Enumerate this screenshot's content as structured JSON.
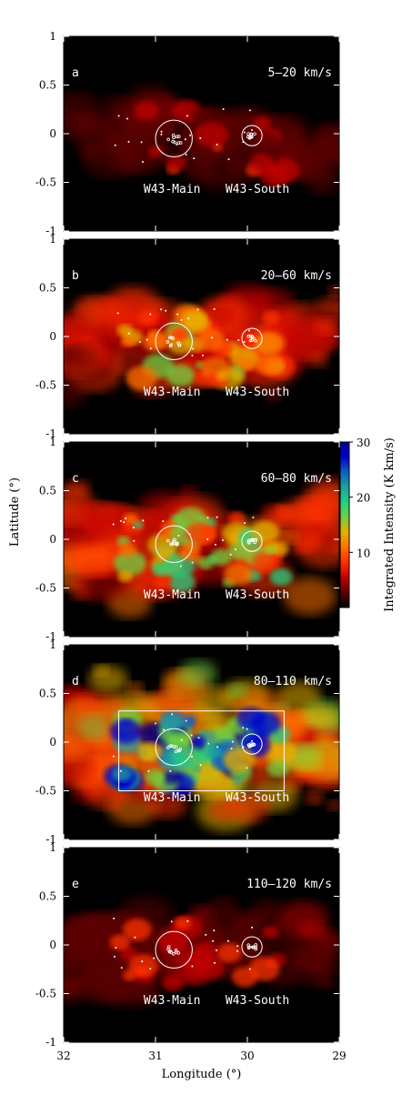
{
  "chart_data": {
    "type": "heatmap",
    "xlabel": "Longitude (°)",
    "ylabel": "Latitude (°)",
    "xlim": [
      32,
      29
    ],
    "ylim": [
      -1,
      1
    ],
    "x_ticks": [
      "32",
      "31",
      "30",
      "29"
    ],
    "x_tick_values": [
      32,
      31,
      30,
      29
    ],
    "y_ticks": [
      "1",
      "0.5",
      "0",
      "-0.5",
      "-1"
    ],
    "y_tick_values": [
      1,
      0.5,
      0,
      -0.5,
      -1
    ],
    "colorbar": {
      "label": "Integrated Intensity (K km/s)",
      "ticks": [
        "30",
        "20",
        "10"
      ],
      "tick_values": [
        30,
        20,
        10
      ],
      "range": [
        0,
        30
      ],
      "colors": [
        "#000000",
        "#5a0000",
        "#c00000",
        "#ff3000",
        "#ff7000",
        "#e8b000",
        "#70d040",
        "#20d080",
        "#20a0a0",
        "#1060c0",
        "#0000d0",
        "#000090"
      ]
    },
    "regions": [
      {
        "name": "W43-Main",
        "l": 30.8,
        "b": -0.05,
        "radius": 0.2
      },
      {
        "name": "W43-South",
        "l": 29.95,
        "b": -0.02,
        "radius": 0.11
      }
    ],
    "box": {
      "l_min": 29.6,
      "l_max": 31.4,
      "b_min": -0.5,
      "b_max": 0.32
    },
    "panels": [
      {
        "id": "a",
        "letter": "a",
        "velocity": "5–20 km/s",
        "intensity": 0.25,
        "show_box": false
      },
      {
        "id": "b",
        "letter": "b",
        "velocity": "20–60 km/s",
        "intensity": 0.55,
        "show_box": false
      },
      {
        "id": "c",
        "letter": "c",
        "velocity": "60–80 km/s",
        "intensity": 0.65,
        "show_box": false
      },
      {
        "id": "d",
        "letter": "d",
        "velocity": "80–110 km/s",
        "intensity": 1.0,
        "show_box": true
      },
      {
        "id": "e",
        "letter": "e",
        "velocity": "110–120 km/s",
        "intensity": 0.3,
        "show_box": false
      }
    ]
  }
}
